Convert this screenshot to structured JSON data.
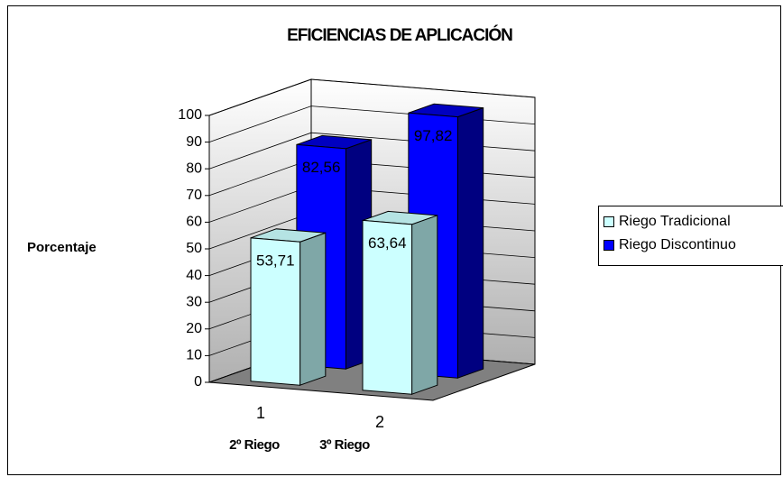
{
  "chart_data": {
    "type": "bar3d",
    "title": "EFICIENCIAS DE APLICACIÓN",
    "ylabel": "Porcentaje",
    "categories": [
      "1",
      "2"
    ],
    "annotations": [
      "2º Riego",
      "3º Riego"
    ],
    "series": [
      {
        "name": "Riego Tradicional",
        "color": "#ccffff",
        "values": [
          53.71,
          63.64
        ],
        "value_labels": [
          "53,71",
          "63,64"
        ]
      },
      {
        "name": "Riego Discontinuo",
        "color": "#0000ff",
        "values": [
          82.56,
          97.82
        ],
        "value_labels": [
          "82,56",
          "97,82"
        ]
      }
    ],
    "ylim": [
      0,
      100
    ],
    "yticks": [
      0,
      10,
      20,
      30,
      40,
      50,
      60,
      70,
      80,
      90,
      100
    ],
    "grid": true,
    "legend": "right"
  }
}
